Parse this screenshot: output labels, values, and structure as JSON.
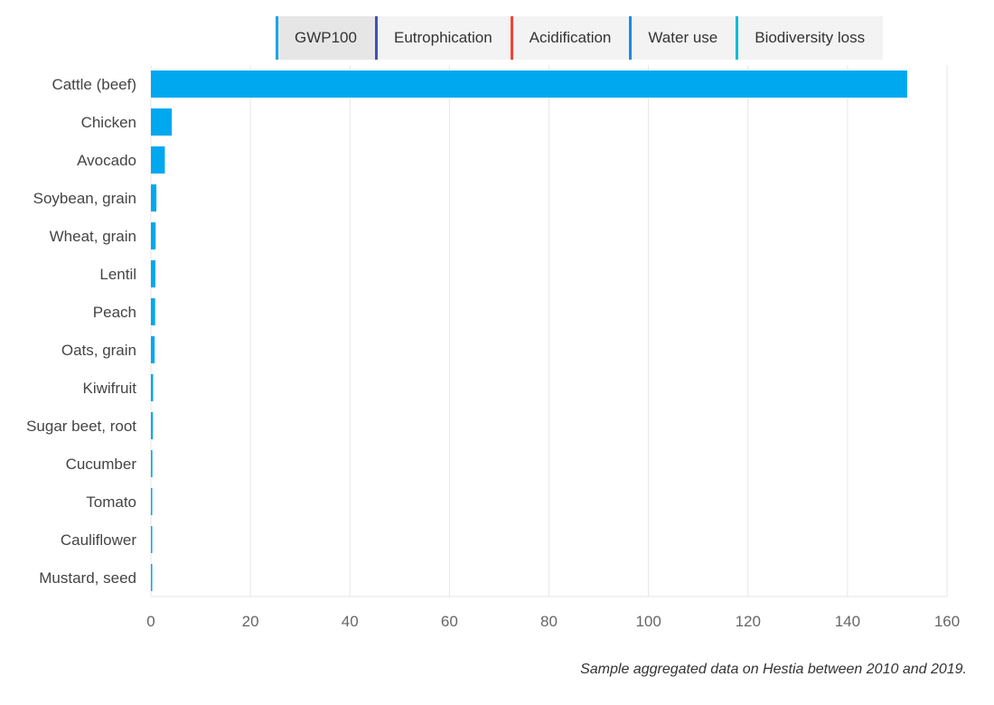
{
  "tabs": [
    {
      "label": "GWP100",
      "color": "#1aa3e8",
      "active": true
    },
    {
      "label": "Eutrophication",
      "color": "#3f51b5",
      "active": false
    },
    {
      "label": "Acidification",
      "color": "#f44336",
      "active": false
    },
    {
      "label": "Water use",
      "color": "#1e88e5",
      "active": false
    },
    {
      "label": "Biodiversity loss",
      "color": "#00bcd4",
      "active": false
    }
  ],
  "caption": "Sample aggregated data on Hestia between 2010 and 2019.",
  "colors": {
    "bar": "#00a8f0",
    "grid": "#e6e6e6",
    "axis_text": "#666666",
    "category_text": "#444444"
  },
  "chart_data": {
    "type": "bar",
    "orientation": "horizontal",
    "title": "",
    "xlabel": "",
    "ylabel": "",
    "xlim": [
      0,
      160
    ],
    "xticks": [
      0,
      20,
      40,
      60,
      80,
      100,
      120,
      140,
      160
    ],
    "grid": true,
    "categories": [
      "Cattle (beef)",
      "Chicken",
      "Avocado",
      "Soybean, grain",
      "Wheat, grain",
      "Lentil",
      "Peach",
      "Oats, grain",
      "Kiwifruit",
      "Sugar beet, root",
      "Cucumber",
      "Tomato",
      "Cauliflower",
      "Mustard, seed"
    ],
    "values": [
      152,
      4.2,
      2.8,
      1.1,
      0.95,
      0.9,
      0.85,
      0.75,
      0.45,
      0.4,
      0.3,
      0.25,
      0.15,
      0.1
    ]
  }
}
